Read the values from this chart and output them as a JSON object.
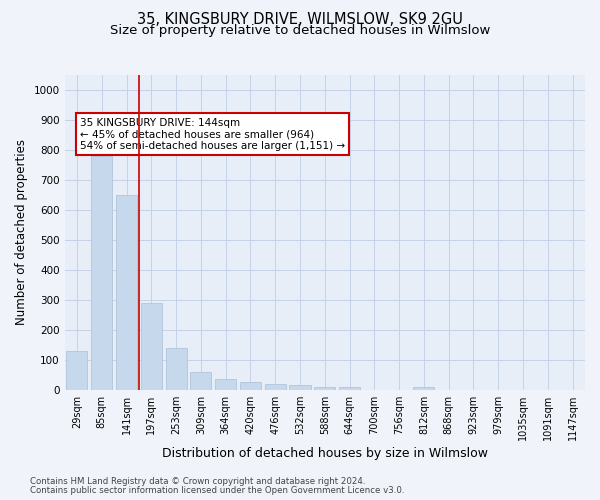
{
  "title": "35, KINGSBURY DRIVE, WILMSLOW, SK9 2GU",
  "subtitle": "Size of property relative to detached houses in Wilmslow",
  "xlabel": "Distribution of detached houses by size in Wilmslow",
  "ylabel": "Number of detached properties",
  "categories": [
    "29sqm",
    "85sqm",
    "141sqm",
    "197sqm",
    "253sqm",
    "309sqm",
    "364sqm",
    "420sqm",
    "476sqm",
    "532sqm",
    "588sqm",
    "644sqm",
    "700sqm",
    "756sqm",
    "812sqm",
    "868sqm",
    "923sqm",
    "979sqm",
    "1035sqm",
    "1091sqm",
    "1147sqm"
  ],
  "values": [
    130,
    780,
    650,
    290,
    140,
    60,
    35,
    25,
    20,
    15,
    10,
    10,
    0,
    0,
    10,
    0,
    0,
    0,
    0,
    0,
    0
  ],
  "bar_color": "#c5d8ec",
  "bar_edgecolor": "#aabfd8",
  "highlight_index": 2,
  "highlight_line_color": "#cc0000",
  "annotation_text": "35 KINGSBURY DRIVE: 144sqm\n← 45% of detached houses are smaller (964)\n54% of semi-detached houses are larger (1,151) →",
  "annotation_box_color": "#ffffff",
  "annotation_box_edgecolor": "#cc0000",
  "ylim": [
    0,
    1050
  ],
  "yticks": [
    0,
    100,
    200,
    300,
    400,
    500,
    600,
    700,
    800,
    900,
    1000
  ],
  "footer1": "Contains HM Land Registry data © Crown copyright and database right 2024.",
  "footer2": "Contains public sector information licensed under the Open Government Licence v3.0.",
  "bg_color": "#f0f4fa",
  "plot_bg_color": "#e8eef8",
  "grid_color": "#c5d2e8",
  "title_fontsize": 10.5,
  "subtitle_fontsize": 9.5,
  "tick_fontsize": 7,
  "ylabel_fontsize": 8.5,
  "xlabel_fontsize": 9
}
